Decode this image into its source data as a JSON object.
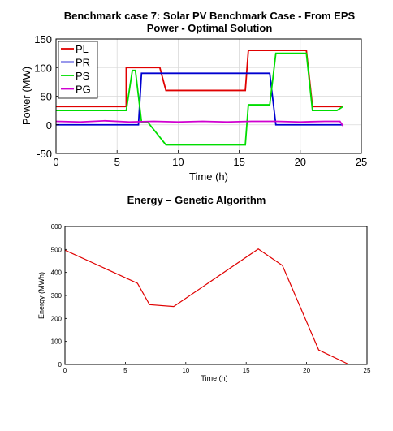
{
  "chart_data": [
    {
      "type": "line",
      "title": [
        "Benchmark case 7: Solar PV Benchmark Case - From EPS",
        "Power - Optimal Solution"
      ],
      "xlabel": "Time (h)",
      "ylabel": "Power (MW)",
      "xlim": [
        0,
        25
      ],
      "ylim": [
        -50,
        150
      ],
      "xticks": [
        0,
        5,
        10,
        15,
        20,
        25
      ],
      "yticks": [
        -50,
        0,
        50,
        100,
        150
      ],
      "grid": true,
      "legend": "top-left",
      "series": [
        {
          "name": "PL",
          "color": "#e00000",
          "x": [
            0,
            5.75,
            5.75,
            8.5,
            9,
            15.5,
            15.75,
            20.5,
            21,
            23.5
          ],
          "y": [
            32,
            32,
            100,
            100,
            60,
            60,
            130,
            130,
            32,
            32
          ]
        },
        {
          "name": "PR",
          "color": "#0000d0",
          "x": [
            0,
            6.75,
            7,
            17.5,
            18,
            23.5
          ],
          "y": [
            0,
            0,
            90,
            90,
            0,
            0
          ]
        },
        {
          "name": "PS",
          "color": "#00dd00",
          "x": [
            0,
            5.75,
            6.25,
            6.5,
            7,
            7.5,
            9,
            15.5,
            15.75,
            17.5,
            18,
            20.5,
            21,
            23,
            23.5
          ],
          "y": [
            25,
            25,
            95,
            95,
            5,
            5,
            -35,
            -35,
            35,
            35,
            125,
            125,
            25,
            25,
            32
          ]
        },
        {
          "name": "PG",
          "color": "#d000d0",
          "x": [
            0,
            2,
            4,
            6,
            8,
            10,
            12,
            14,
            16,
            18,
            20,
            22,
            23.25,
            23.5
          ],
          "y": [
            6,
            5,
            7,
            5,
            6,
            5,
            6,
            5,
            6,
            6,
            5,
            6,
            6,
            -2
          ]
        }
      ]
    },
    {
      "type": "line",
      "title": "Energy – Genetic Algorithm",
      "xlabel": "Time (h)",
      "ylabel": "Energy (MWh)",
      "xlim": [
        0,
        25
      ],
      "ylim": [
        0,
        600
      ],
      "xticks": [
        0,
        5,
        10,
        15,
        20,
        25
      ],
      "yticks": [
        0,
        100,
        200,
        300,
        400,
        500,
        600
      ],
      "grid": false,
      "series": [
        {
          "color": "#e00000",
          "x": [
            0,
            6,
            7,
            9,
            16,
            18,
            21,
            23.5
          ],
          "y": [
            497,
            353,
            260,
            252,
            502,
            430,
            63,
            0
          ]
        }
      ]
    }
  ]
}
